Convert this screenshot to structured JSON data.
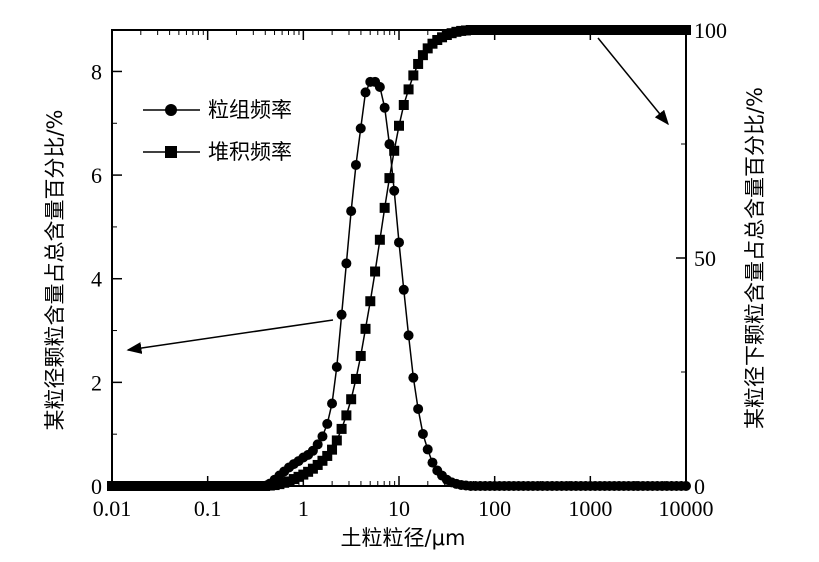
{
  "chart_data": {
    "type": "line",
    "xlabel": "土粒粒径/μm",
    "ylabel_left": "某粒径颗粒含量占总含量百分比/%",
    "ylabel_right": "某粒径下颗粒含量占总含量百分比/%",
    "x_scale": "log",
    "xlim": [
      0.01,
      10000
    ],
    "ylim_left": [
      0,
      8.8
    ],
    "ylim_right": [
      0,
      100
    ],
    "x_ticks": [
      0.01,
      0.1,
      1,
      10,
      100,
      1000,
      10000
    ],
    "x_tick_labels": [
      "0.01",
      "0.1",
      "1",
      "10",
      "100",
      "1000",
      "10000"
    ],
    "y_left_ticks": [
      0,
      2,
      4,
      6,
      8
    ],
    "y_left_tick_labels": [
      "0",
      "2",
      "4",
      "6",
      "8"
    ],
    "y_right_ticks": [
      0,
      50,
      100
    ],
    "y_right_tick_labels": [
      "0",
      "50",
      "100"
    ],
    "legend_position": "upper-left",
    "grid": false,
    "series": [
      {
        "name": "粒组频率",
        "axis": "left",
        "marker": "circle",
        "points": [
          [
            0.01,
            0
          ],
          [
            0.02,
            0
          ],
          [
            0.05,
            0
          ],
          [
            0.1,
            0
          ],
          [
            0.2,
            0
          ],
          [
            0.4,
            0
          ],
          [
            0.45,
            0.05
          ],
          [
            0.5,
            0.12
          ],
          [
            0.56,
            0.2
          ],
          [
            0.63,
            0.28
          ],
          [
            0.71,
            0.36
          ],
          [
            0.79,
            0.42
          ],
          [
            0.89,
            0.48
          ],
          [
            1.0,
            0.55
          ],
          [
            1.12,
            0.6
          ],
          [
            1.26,
            0.68
          ],
          [
            1.41,
            0.8
          ],
          [
            1.58,
            0.95
          ],
          [
            1.78,
            1.2
          ],
          [
            2.0,
            1.6
          ],
          [
            2.24,
            2.3
          ],
          [
            2.51,
            3.3
          ],
          [
            2.82,
            4.3
          ],
          [
            3.16,
            5.3
          ],
          [
            3.55,
            6.2
          ],
          [
            3.98,
            6.9
          ],
          [
            4.47,
            7.6
          ],
          [
            5.01,
            7.8
          ],
          [
            5.62,
            7.8
          ],
          [
            6.31,
            7.7
          ],
          [
            7.08,
            7.3
          ],
          [
            7.94,
            6.6
          ],
          [
            8.91,
            5.7
          ],
          [
            10.0,
            4.7
          ],
          [
            11.2,
            3.8
          ],
          [
            12.6,
            2.9
          ],
          [
            14.1,
            2.1
          ],
          [
            15.8,
            1.5
          ],
          [
            17.8,
            1.0
          ],
          [
            20.0,
            0.7
          ],
          [
            22.4,
            0.45
          ],
          [
            25.1,
            0.3
          ],
          [
            28.2,
            0.2
          ],
          [
            31.6,
            0.12
          ],
          [
            35.5,
            0.07
          ],
          [
            39.8,
            0.04
          ],
          [
            44.7,
            0.02
          ],
          [
            50.1,
            0.01
          ],
          [
            56.2,
            0
          ],
          [
            63.1,
            0
          ],
          [
            70.8,
            0
          ],
          [
            100,
            0
          ],
          [
            200,
            0
          ],
          [
            500,
            0
          ],
          [
            1000,
            0
          ],
          [
            2000,
            0
          ],
          [
            5000,
            0
          ],
          [
            10000,
            0
          ]
        ]
      },
      {
        "name": "堆积频率",
        "axis": "right",
        "marker": "square",
        "points": [
          [
            0.01,
            0
          ],
          [
            0.02,
            0
          ],
          [
            0.05,
            0
          ],
          [
            0.1,
            0
          ],
          [
            0.2,
            0
          ],
          [
            0.4,
            0
          ],
          [
            0.5,
            0.2
          ],
          [
            0.56,
            0.4
          ],
          [
            0.63,
            0.7
          ],
          [
            0.71,
            1.0
          ],
          [
            0.79,
            1.5
          ],
          [
            0.89,
            2.0
          ],
          [
            1.0,
            2.5
          ],
          [
            1.12,
            3.1
          ],
          [
            1.26,
            3.8
          ],
          [
            1.41,
            4.6
          ],
          [
            1.58,
            5.5
          ],
          [
            1.78,
            6.6
          ],
          [
            2.0,
            8.0
          ],
          [
            2.24,
            10.0
          ],
          [
            2.51,
            12.5
          ],
          [
            2.82,
            15.5
          ],
          [
            3.16,
            19.0
          ],
          [
            3.55,
            23.5
          ],
          [
            3.98,
            28.5
          ],
          [
            4.47,
            34.5
          ],
          [
            5.01,
            40.5
          ],
          [
            5.62,
            47.0
          ],
          [
            6.31,
            54.0
          ],
          [
            7.08,
            61.0
          ],
          [
            7.94,
            67.5
          ],
          [
            8.91,
            73.5
          ],
          [
            10.0,
            79.0
          ],
          [
            11.2,
            83.5
          ],
          [
            12.6,
            87.0
          ],
          [
            14.1,
            90.0
          ],
          [
            15.8,
            92.5
          ],
          [
            17.8,
            94.5
          ],
          [
            20.0,
            96.0
          ],
          [
            22.4,
            97.0
          ],
          [
            25.1,
            97.8
          ],
          [
            28.2,
            98.4
          ],
          [
            31.6,
            98.9
          ],
          [
            35.5,
            99.3
          ],
          [
            39.8,
            99.6
          ],
          [
            44.7,
            99.8
          ],
          [
            50.1,
            99.9
          ],
          [
            56.2,
            100
          ],
          [
            63.1,
            100
          ],
          [
            100,
            100
          ],
          [
            200,
            100
          ],
          [
            500,
            100
          ],
          [
            1000,
            100
          ],
          [
            2000,
            100
          ],
          [
            5000,
            100
          ],
          [
            10000,
            100
          ]
        ]
      }
    ]
  }
}
